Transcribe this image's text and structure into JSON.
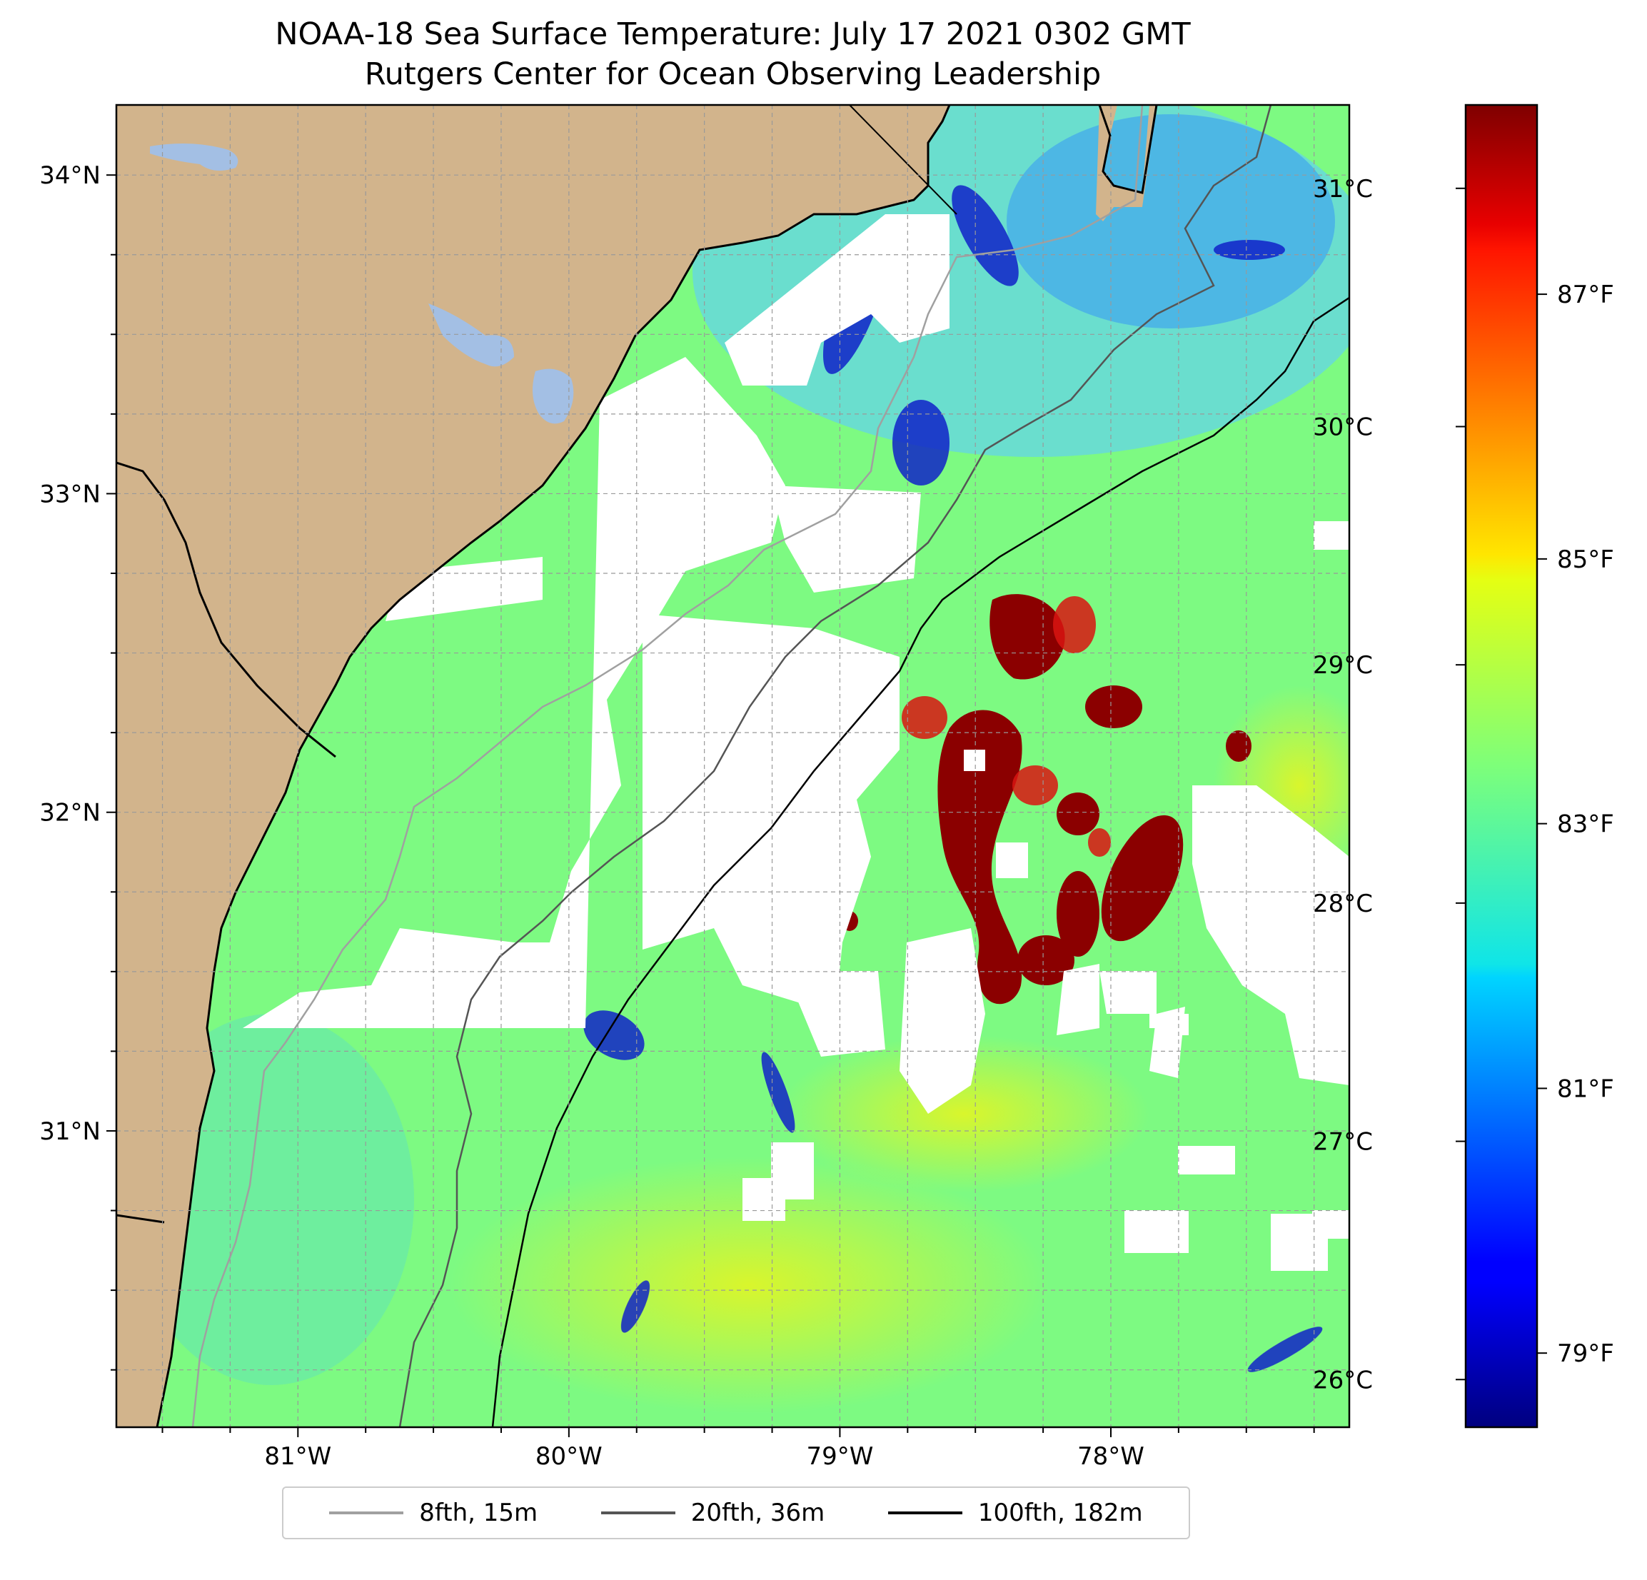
{
  "title_line1": "NOAA-18 Sea Surface Temperature: July 17 2021 0302 GMT",
  "title_line2": "Rutgers Center for Ocean Observing Leadership",
  "map": {
    "type": "sea-surface-temperature",
    "lon_range": [
      -81.67,
      -77.12
    ],
    "lat_range": [
      30.07,
      34.22
    ],
    "lat_ticks": [
      {
        "value": 34,
        "label": "34°N"
      },
      {
        "value": 33,
        "label": "33°N"
      },
      {
        "value": 32,
        "label": "32°N"
      },
      {
        "value": 31,
        "label": "31°N"
      }
    ],
    "lon_ticks": [
      {
        "value": -81,
        "label": "81°W"
      },
      {
        "value": -80,
        "label": "80°W"
      },
      {
        "value": -79,
        "label": "79°W"
      },
      {
        "value": -78,
        "label": "78°W"
      }
    ],
    "gridlines": "dashed",
    "colors": {
      "land": "#d2b48c",
      "lakes": "#a3bfe4",
      "no_data": "#ffffff",
      "coastline": "#000000"
    }
  },
  "colorbar": {
    "colormap": "jet",
    "range_c": [
      25.8,
      31.35
    ],
    "celsius_ticks": [
      {
        "value": 31,
        "label": "31°C"
      },
      {
        "value": 30,
        "label": "30°C"
      },
      {
        "value": 29,
        "label": "29°C"
      },
      {
        "value": 28,
        "label": "28°C"
      },
      {
        "value": 27,
        "label": "27°C"
      },
      {
        "value": 26,
        "label": "26°C"
      }
    ],
    "fahrenheit_ticks": [
      {
        "value": 87,
        "label": "87°F"
      },
      {
        "value": 85,
        "label": "85°F"
      },
      {
        "value": 83,
        "label": "83°F"
      },
      {
        "value": 81,
        "label": "81°F"
      },
      {
        "value": 79,
        "label": "79°F"
      }
    ]
  },
  "legend": [
    {
      "label": "8fth, 15m",
      "color": "#a0a0a0"
    },
    {
      "label": "20fth, 36m",
      "color": "#555555"
    },
    {
      "label": "100fth, 182m",
      "color": "#000000"
    }
  ]
}
